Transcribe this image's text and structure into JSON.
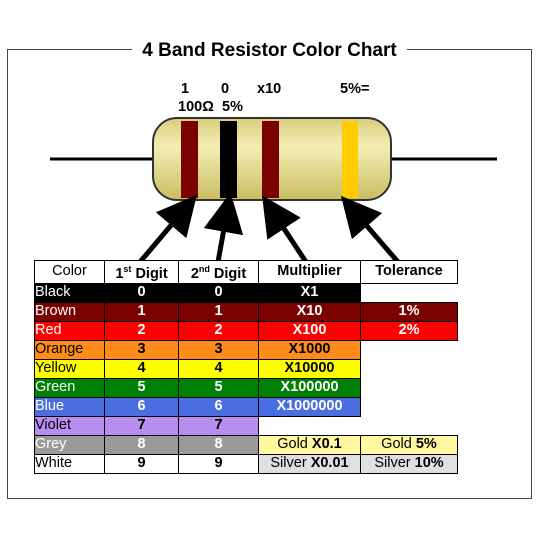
{
  "title": "4 Band Resistor Color Chart",
  "example": {
    "digit1": "1",
    "digit2": "0",
    "multiplier": "x10",
    "tolerance": "5%=",
    "result_value": "100Ω",
    "result_tolerance": "5%"
  },
  "colors": {
    "body": "#f0e68c",
    "band1": "#7b0000",
    "band2": "#000000",
    "band3": "#7b0000",
    "band4": "#ffcc00"
  },
  "table": {
    "headers": {
      "color": "Color",
      "digit1": "1",
      "digit1_sup": "st",
      "digit1_suffix": " Digit",
      "digit2": "2",
      "digit2_sup": "nd",
      "digit2_suffix": " Digit",
      "multiplier": "Multiplier",
      "tolerance": "Tolerance"
    },
    "rows": [
      {
        "name": "Black",
        "d1": "0",
        "d2": "0",
        "mult": "X1",
        "tol": "",
        "bg": "#000000",
        "fg": "#ffffff"
      },
      {
        "name": "Brown",
        "d1": "1",
        "d2": "1",
        "mult": "X10",
        "tol": "1%",
        "bg": "#7b0000",
        "fg": "#ffffff"
      },
      {
        "name": "Red",
        "d1": "2",
        "d2": "2",
        "mult": "X100",
        "tol": "2%",
        "bg": "#ff0000",
        "fg": "#ffffff"
      },
      {
        "name": "Orange",
        "d1": "3",
        "d2": "3",
        "mult": "X1000",
        "tol": "",
        "bg": "#ff8c1a",
        "fg": "#000000"
      },
      {
        "name": "Yellow",
        "d1": "4",
        "d2": "4",
        "mult": "X10000",
        "tol": "",
        "bg": "#ffff00",
        "fg": "#000000"
      },
      {
        "name": "Green",
        "d1": "5",
        "d2": "5",
        "mult": "X100000",
        "tol": "",
        "bg": "#008000",
        "fg": "#ffffff"
      },
      {
        "name": "Blue",
        "d1": "6",
        "d2": "6",
        "mult": "X1000000",
        "tol": "",
        "bg": "#4a6ee0",
        "fg": "#ffffff"
      },
      {
        "name": "Violet",
        "d1": "7",
        "d2": "7",
        "mult": "",
        "tol": "",
        "bg": "#b98cf0",
        "fg": "#000000"
      },
      {
        "name": "Grey",
        "d1": "8",
        "d2": "8",
        "mult": "",
        "tol": "",
        "bg": "#9a9a9a",
        "fg": "#ffffff"
      },
      {
        "name": "White",
        "d1": "9",
        "d2": "9",
        "mult": "",
        "tol": "",
        "bg": "#ffffff",
        "fg": "#000000"
      }
    ],
    "gold": {
      "mult_prefix": "Gold ",
      "mult_value": "X0.1",
      "tol_prefix": "Gold ",
      "tol_value": "5%",
      "bg": "#fff8a0"
    },
    "silver": {
      "mult_prefix": "Silver ",
      "mult_value": "X0.01",
      "tol_prefix": "Silver ",
      "tol_value": "10%",
      "bg": "#e0e0e0"
    }
  }
}
